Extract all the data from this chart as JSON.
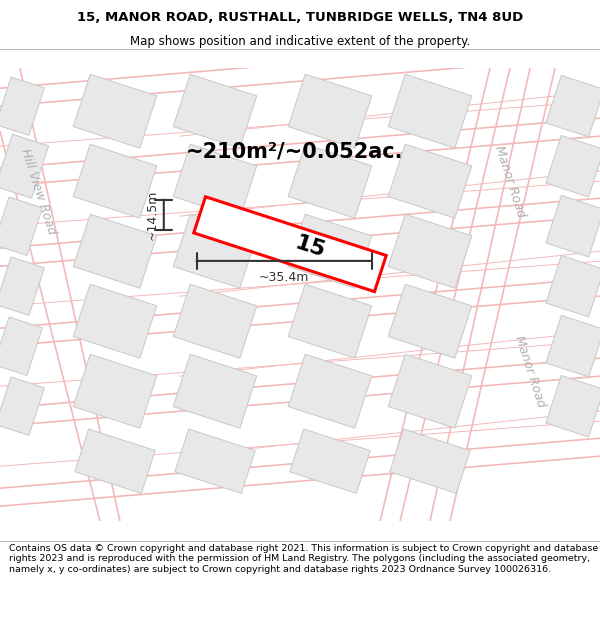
{
  "title": "15, MANOR ROAD, RUSTHALL, TUNBRIDGE WELLS, TN4 8UD",
  "subtitle": "Map shows position and indicative extent of the property.",
  "area_text": "~210m²/~0.052ac.",
  "dim_width": "~35.4m",
  "dim_height": "~14.5m",
  "property_number": "15",
  "footer": "Contains OS data © Crown copyright and database right 2021. This information is subject to Crown copyright and database rights 2023 and is reproduced with the permission of HM Land Registry. The polygons (including the associated geometry, namely x, y co-ordinates) are subject to Crown copyright and database rights 2023 Ordnance Survey 100026316.",
  "map_bg": "#ffffff",
  "building_color": "#e8e8e8",
  "building_edge": "#c8c8c8",
  "road_line_color": "#f5b8b8",
  "road_label_color": "#b0b0b0",
  "property_fill": "#ffffff",
  "property_edge": "#ff0000",
  "dim_color": "#333333",
  "title_color": "#000000",
  "footer_color": "#000000",
  "title_fontsize": 9.5,
  "subtitle_fontsize": 8.5,
  "area_fontsize": 15,
  "dim_fontsize": 9,
  "prop_num_fontsize": 16,
  "road_label_fontsize": 9,
  "footer_fontsize": 6.8
}
